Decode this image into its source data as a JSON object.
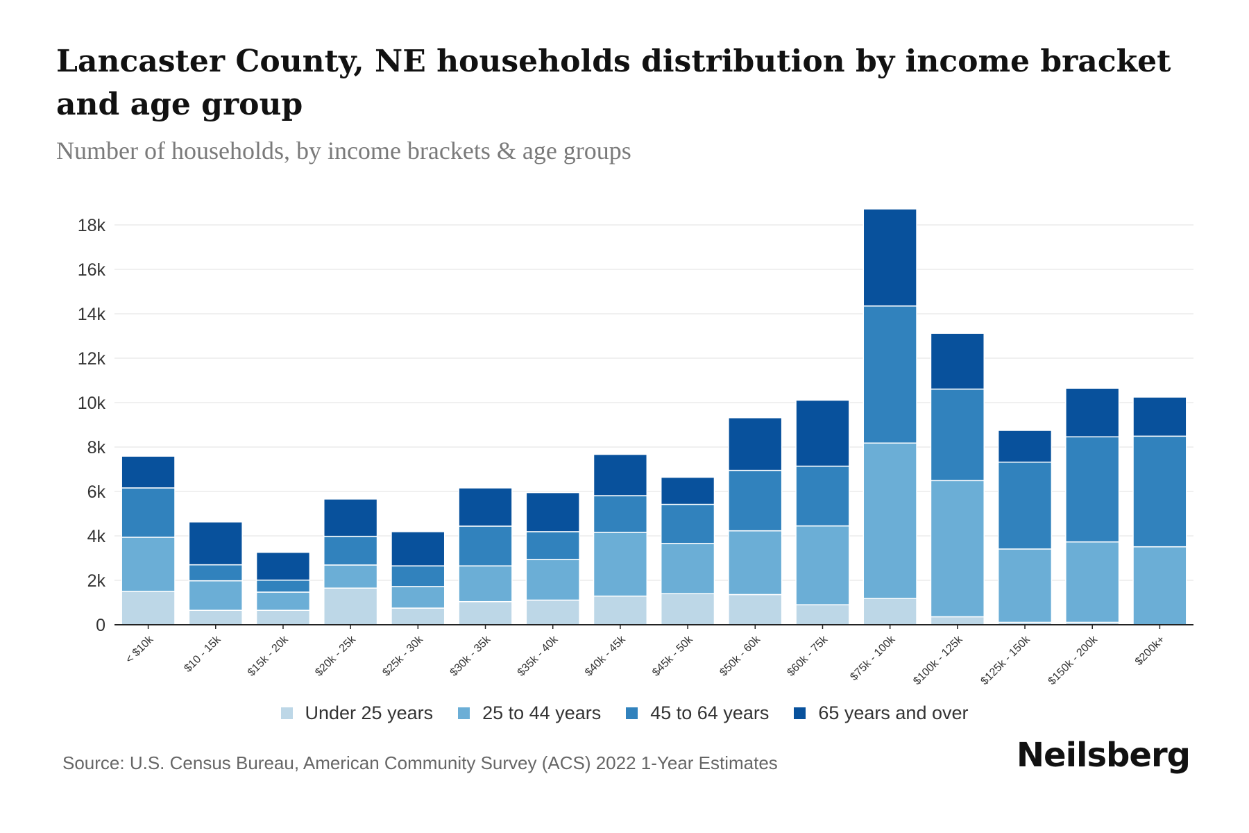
{
  "header": {
    "title": "Lancaster County, NE households distribution by income bracket and age group",
    "subtitle": "Number of households, by income brackets & age groups"
  },
  "footer": {
    "source": "Source: U.S. Census Bureau, American Community Survey (ACS) 2022 1-Year Estimates",
    "logo": "Neilsberg"
  },
  "chart_data": {
    "type": "bar",
    "stacked": true,
    "title": "Lancaster County, NE households distribution by income bracket and age group",
    "subtitle": "Number of households, by income brackets & age groups",
    "xlabel": "",
    "ylabel": "",
    "ylim": [
      0,
      18000
    ],
    "yticks": [
      0,
      2000,
      4000,
      6000,
      8000,
      10000,
      12000,
      14000,
      16000,
      18000
    ],
    "ytick_labels": [
      "0",
      "2k",
      "4k",
      "6k",
      "8k",
      "10k",
      "12k",
      "14k",
      "16k",
      "18k"
    ],
    "grid": true,
    "legend_position": "bottom",
    "categories": [
      "< $10k",
      "$10 - 15k",
      "$15k - 20k",
      "$20k - 25k",
      "$25k - 30k",
      "$30k - 35k",
      "$35k - 40k",
      "$40k - 45k",
      "$45k - 50k",
      "$50k - 60k",
      "$60k - 75k",
      "$75k - 100k",
      "$100k - 125k",
      "$125k - 150k",
      "$150k - 200k",
      "$200k+"
    ],
    "series": [
      {
        "name": "Under 25 years",
        "color": "#bdd7e7",
        "values": [
          1500,
          650,
          650,
          1650,
          750,
          1040,
          1110,
          1290,
          1400,
          1360,
          900,
          1180,
          360,
          110,
          110,
          0
        ]
      },
      {
        "name": "25 to 44 years",
        "color": "#6baed6",
        "values": [
          2440,
          1330,
          820,
          1040,
          970,
          1610,
          1830,
          2870,
          2260,
          2870,
          3550,
          7000,
          6130,
          3300,
          3620,
          3510
        ]
      },
      {
        "name": "45 to 64 years",
        "color": "#3182bd",
        "values": [
          2220,
          720,
          540,
          1290,
          930,
          1790,
          1250,
          1650,
          1760,
          2720,
          2690,
          6170,
          4120,
          3910,
          4730,
          4980
        ]
      },
      {
        "name": "65 years and over",
        "color": "#08519c",
        "values": [
          1430,
          1930,
          1250,
          1680,
          1540,
          1720,
          1760,
          1860,
          1220,
          2370,
          2970,
          4370,
          2510,
          1430,
          2190,
          1760
        ]
      }
    ]
  }
}
